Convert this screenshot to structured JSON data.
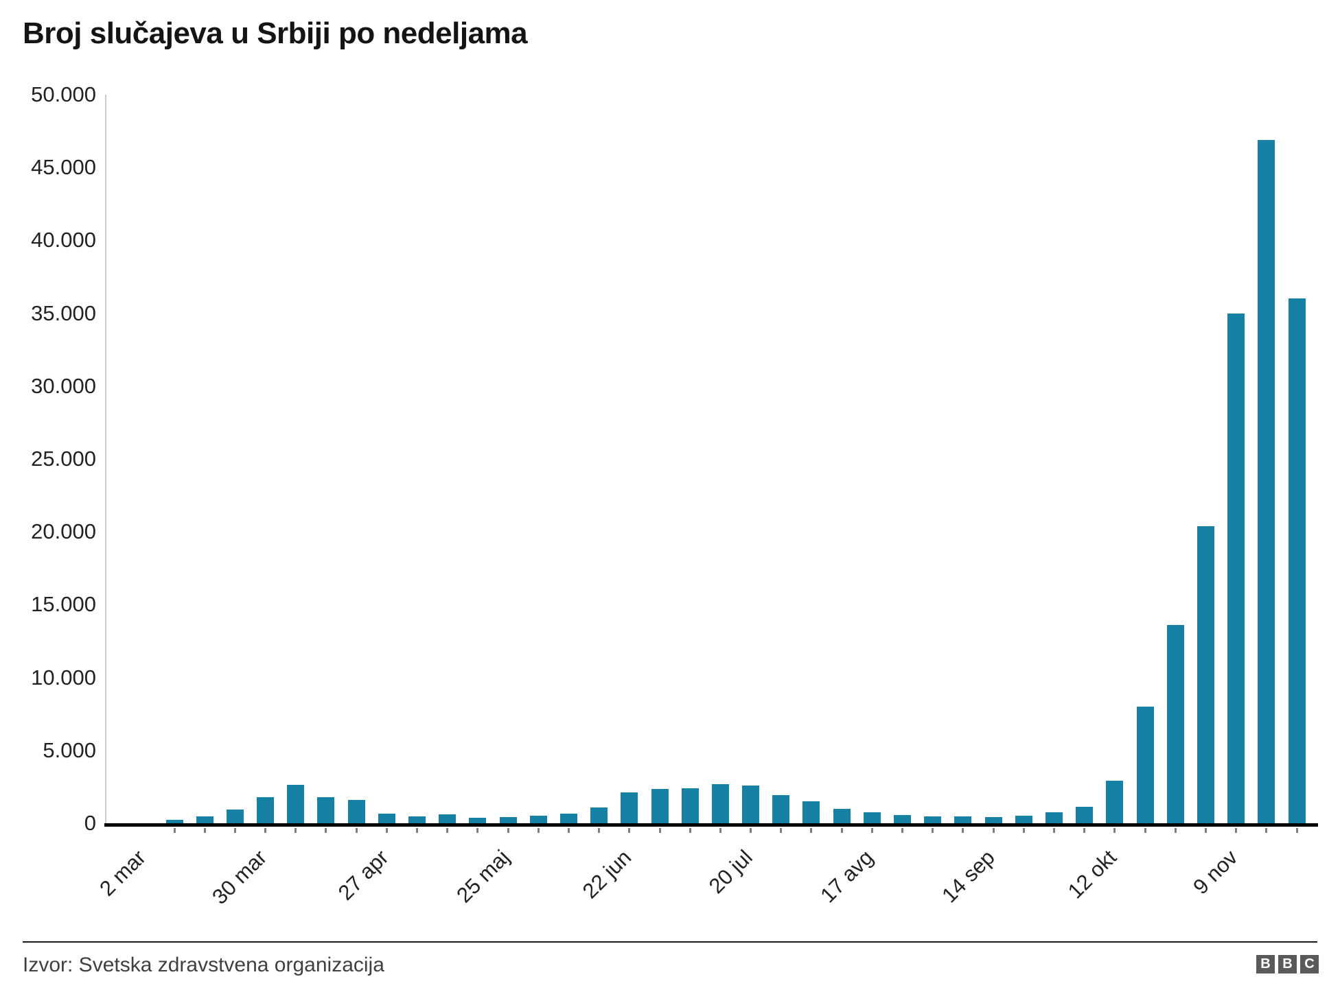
{
  "title": "Broj slučajeva u Srbiji po nedeljama",
  "source": "Izvor: Svetska zdravstvena organizacija",
  "logo": {
    "letters": [
      "B",
      "B",
      "C"
    ]
  },
  "colors": {
    "bar": "#1681A3",
    "axis_line_x": "#000000",
    "axis_line_y": "#cccccc",
    "tick": "#7f7f7f",
    "title_text": "#141414",
    "axis_text": "#222222",
    "source_text": "#404040",
    "logo_bg": "#5a5a5b",
    "logo_text": "#ffffff"
  },
  "chart_data": {
    "type": "bar",
    "title": "Broj slučajeva u Srbiji po nedeljama",
    "xlabel": "",
    "ylabel": "",
    "ylim": [
      0,
      50000
    ],
    "grid": false,
    "legend_position": "none",
    "n_bars": 38,
    "values": [
      220,
      470,
      950,
      1800,
      2650,
      1800,
      1580,
      640,
      480,
      600,
      370,
      440,
      520,
      650,
      1090,
      2130,
      2350,
      2400,
      2700,
      2600,
      1930,
      1510,
      990,
      750,
      550,
      450,
      480,
      430,
      520,
      750,
      1140,
      2900,
      8000,
      13600,
      20400,
      35000,
      46900,
      36000
    ],
    "y_tick_labels": [
      "50.000",
      "45.000",
      "40.000",
      "35.000",
      "30.000",
      "25.000",
      "20.000",
      "15.000",
      "10.000",
      "5.000",
      "0"
    ],
    "y_tick_values": [
      50000,
      45000,
      40000,
      35000,
      30000,
      25000,
      20000,
      15000,
      10000,
      5000,
      0
    ],
    "x_tick_labels": [
      {
        "index": 0,
        "label": "2 mar"
      },
      {
        "index": 4,
        "label": "30 mar"
      },
      {
        "index": 8,
        "label": "27 apr"
      },
      {
        "index": 12,
        "label": "25 maj"
      },
      {
        "index": 16,
        "label": "22 jun"
      },
      {
        "index": 20,
        "label": "20 jul"
      },
      {
        "index": 24,
        "label": "17 avg"
      },
      {
        "index": 28,
        "label": "14 sep"
      },
      {
        "index": 32,
        "label": "12 okt"
      },
      {
        "index": 36,
        "label": "9 nov"
      }
    ]
  }
}
